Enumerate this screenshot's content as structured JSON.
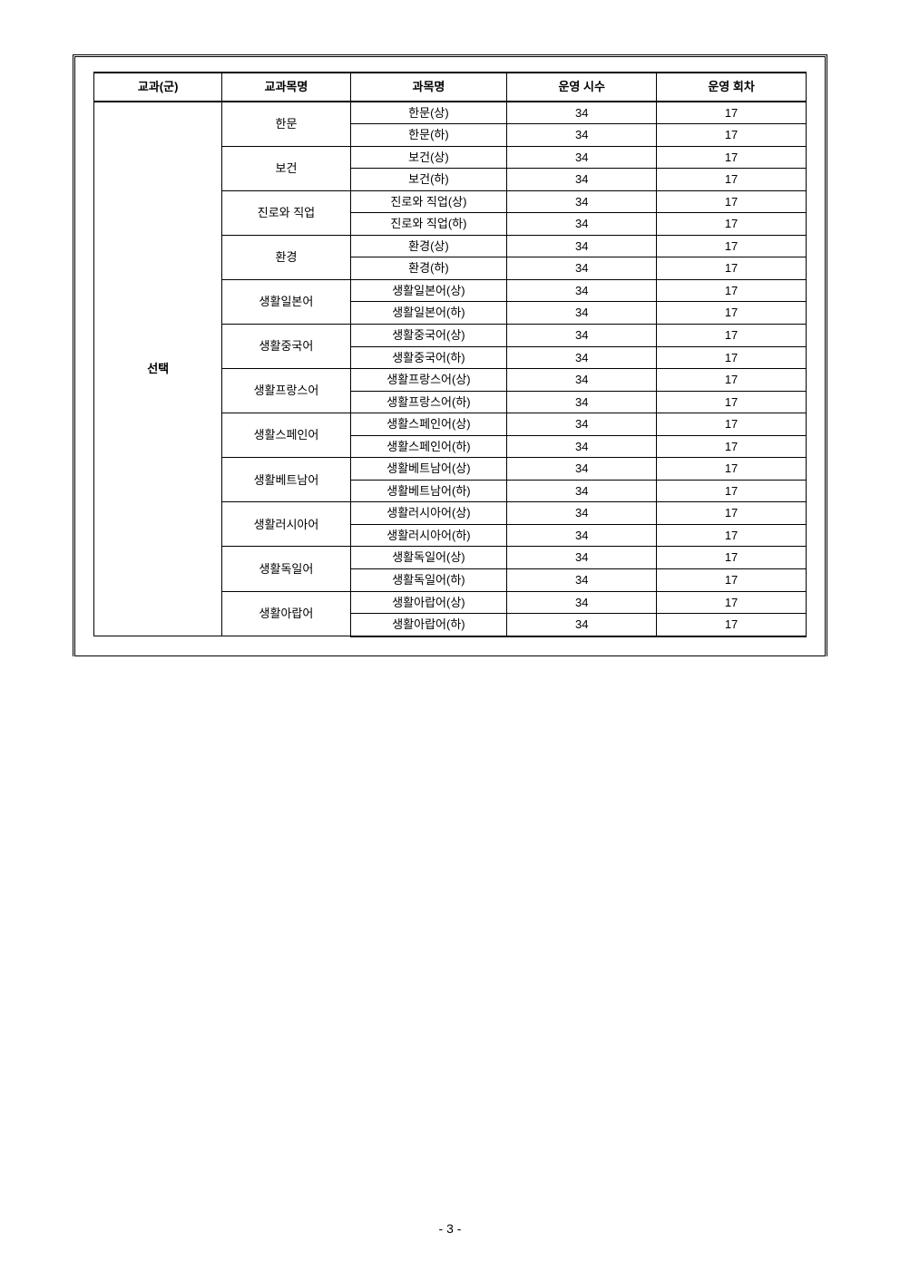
{
  "page_number": "- 3 -",
  "table": {
    "type": "table",
    "background_color": "#ffffff",
    "border_color": "#000000",
    "header_fontsize": 13,
    "body_fontsize": 13,
    "columns": [
      {
        "key": "group",
        "label": "교과(군)",
        "width_pct": 18
      },
      {
        "key": "subject",
        "label": "교과목명",
        "width_pct": 18
      },
      {
        "key": "course",
        "label": "과목명",
        "width_pct": 22
      },
      {
        "key": "hours",
        "label": "운영 시수",
        "width_pct": 21
      },
      {
        "key": "sessions",
        "label": "운영 회차",
        "width_pct": 21
      }
    ],
    "category_label": "선택",
    "subjects": [
      {
        "name": "한문",
        "rows": [
          {
            "course": "한문(상)",
            "hours": "34",
            "sessions": "17"
          },
          {
            "course": "한문(하)",
            "hours": "34",
            "sessions": "17"
          }
        ]
      },
      {
        "name": "보건",
        "rows": [
          {
            "course": "보건(상)",
            "hours": "34",
            "sessions": "17"
          },
          {
            "course": "보건(하)",
            "hours": "34",
            "sessions": "17"
          }
        ]
      },
      {
        "name": "진로와 직업",
        "rows": [
          {
            "course": "진로와 직업(상)",
            "hours": "34",
            "sessions": "17"
          },
          {
            "course": "진로와 직업(하)",
            "hours": "34",
            "sessions": "17"
          }
        ]
      },
      {
        "name": "환경",
        "rows": [
          {
            "course": "환경(상)",
            "hours": "34",
            "sessions": "17"
          },
          {
            "course": "환경(하)",
            "hours": "34",
            "sessions": "17"
          }
        ]
      },
      {
        "name": "생활일본어",
        "rows": [
          {
            "course": "생활일본어(상)",
            "hours": "34",
            "sessions": "17"
          },
          {
            "course": "생활일본어(하)",
            "hours": "34",
            "sessions": "17"
          }
        ]
      },
      {
        "name": "생활중국어",
        "rows": [
          {
            "course": "생활중국어(상)",
            "hours": "34",
            "sessions": "17"
          },
          {
            "course": "생활중국어(하)",
            "hours": "34",
            "sessions": "17"
          }
        ]
      },
      {
        "name": "생활프랑스어",
        "rows": [
          {
            "course": "생활프랑스어(상)",
            "hours": "34",
            "sessions": "17"
          },
          {
            "course": "생활프랑스어(하)",
            "hours": "34",
            "sessions": "17"
          }
        ]
      },
      {
        "name": "생활스페인어",
        "rows": [
          {
            "course": "생활스페인어(상)",
            "hours": "34",
            "sessions": "17"
          },
          {
            "course": "생활스페인어(하)",
            "hours": "34",
            "sessions": "17"
          }
        ]
      },
      {
        "name": "생활베트남어",
        "rows": [
          {
            "course": "생활베트남어(상)",
            "hours": "34",
            "sessions": "17"
          },
          {
            "course": "생활베트남어(하)",
            "hours": "34",
            "sessions": "17"
          }
        ]
      },
      {
        "name": "생활러시아어",
        "rows": [
          {
            "course": "생활러시아어(상)",
            "hours": "34",
            "sessions": "17"
          },
          {
            "course": "생활러시아어(하)",
            "hours": "34",
            "sessions": "17"
          }
        ]
      },
      {
        "name": "생활독일어",
        "rows": [
          {
            "course": "생활독일어(상)",
            "hours": "34",
            "sessions": "17"
          },
          {
            "course": "생활독일어(하)",
            "hours": "34",
            "sessions": "17"
          }
        ]
      },
      {
        "name": "생활아랍어",
        "rows": [
          {
            "course": "생활아랍어(상)",
            "hours": "34",
            "sessions": "17"
          },
          {
            "course": "생활아랍어(하)",
            "hours": "34",
            "sessions": "17"
          }
        ]
      }
    ]
  }
}
